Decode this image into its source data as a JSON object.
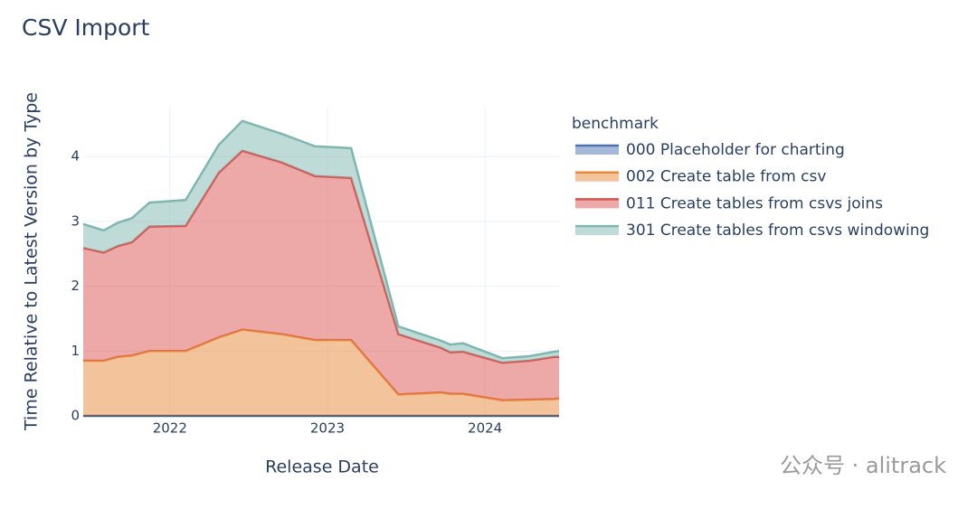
{
  "chart_data": {
    "type": "stacked-area",
    "title": "CSV Import",
    "x_label": "Release Date",
    "y_label": "Time Relative to Latest Version by Type",
    "legend_title": "benchmark",
    "legend_position": "right",
    "grid": true,
    "x": [
      2021.45,
      2021.58,
      2021.67,
      2021.76,
      2021.87,
      2022.1,
      2022.31,
      2022.46,
      2022.71,
      2022.92,
      2023.15,
      2023.45,
      2023.72,
      2023.78,
      2023.86,
      2024.11,
      2024.28,
      2024.44,
      2024.47
    ],
    "xlim": [
      2021.45,
      2024.47
    ],
    "xticks": [
      2022,
      2023,
      2024
    ],
    "ylim": [
      0,
      4.77
    ],
    "yticks": [
      0,
      1,
      2,
      3,
      4
    ],
    "series": [
      {
        "name": "000 Placeholder for charting",
        "color": "#4c72b0",
        "values": [
          0,
          0,
          0,
          0,
          0,
          0,
          0,
          0,
          0,
          0,
          0,
          0,
          0,
          0,
          0,
          0,
          0,
          0,
          0
        ]
      },
      {
        "name": "002 Create table from csv",
        "color": "#e8883a",
        "values": [
          0.85,
          0.85,
          0.91,
          0.93,
          1.0,
          1.0,
          1.21,
          1.33,
          1.26,
          1.17,
          1.17,
          0.33,
          0.36,
          0.34,
          0.34,
          0.24,
          0.25,
          0.26,
          0.27
        ]
      },
      {
        "name": "011 Create tables from csvs joins",
        "color": "#d9534f",
        "values": [
          1.74,
          1.67,
          1.71,
          1.75,
          1.92,
          1.93,
          2.54,
          2.76,
          2.65,
          2.53,
          2.5,
          0.93,
          0.69,
          0.64,
          0.65,
          0.58,
          0.6,
          0.65,
          0.64
        ]
      },
      {
        "name": "301 Create tables from csvs windowing",
        "color": "#7fb7b0",
        "values": [
          0.37,
          0.34,
          0.36,
          0.37,
          0.37,
          0.4,
          0.43,
          0.46,
          0.44,
          0.46,
          0.46,
          0.12,
          0.11,
          0.12,
          0.13,
          0.07,
          0.07,
          0.08,
          0.09
        ]
      }
    ]
  },
  "watermark": "公众号 · alitrack"
}
